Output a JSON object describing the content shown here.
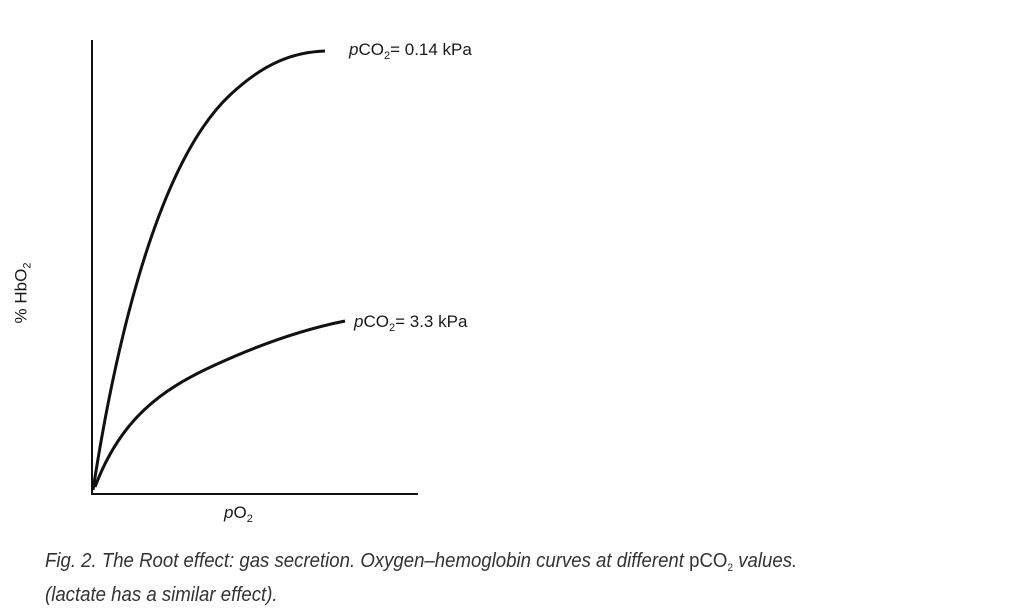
{
  "figure": {
    "y_axis_label": {
      "prefix": "% HbO",
      "sub": "2"
    },
    "x_axis_label": {
      "italic": "p",
      "main": "O",
      "sub": "2"
    },
    "curves": [
      {
        "label_italic": "p",
        "label_main": "CO",
        "label_sub": "2",
        "label_value": "= 0.14 kPa"
      },
      {
        "label_italic": "p",
        "label_main": "CO",
        "label_sub": "2",
        "label_value": "= 3.3 kPa"
      }
    ],
    "caption": {
      "line1_a": "Fig. 2.    The Root effect: gas secretion. Oxygen–hemoglobin curves at different ",
      "line1_symbol": "pCO",
      "line1_sub": "2",
      "line1_b": " values.",
      "line2": "(lactate has a similar effect)."
    }
  }
}
